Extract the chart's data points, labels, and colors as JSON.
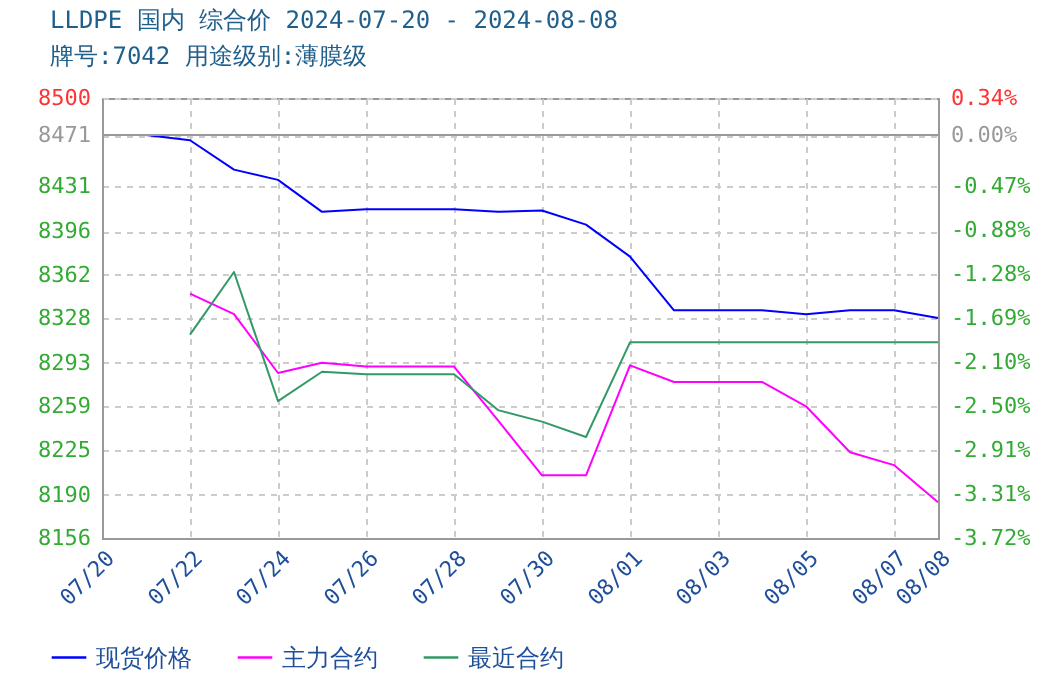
{
  "chart_data": {
    "type": "line",
    "title": "LLDPE 国内 综合价 2024-07-20 - 2024-08-08",
    "subtitle": "牌号:7042 用途级别:薄膜级",
    "x": [
      "2024-07-20",
      "2024-07-21",
      "2024-07-22",
      "2024-07-23",
      "2024-07-24",
      "2024-07-25",
      "2024-07-26",
      "2024-07-27",
      "2024-07-28",
      "2024-07-29",
      "2024-07-30",
      "2024-07-31",
      "2024-08-01",
      "2024-08-02",
      "2024-08-03",
      "2024-08-04",
      "2024-08-05",
      "2024-08-06",
      "2024-08-07",
      "2024-08-08"
    ],
    "series": [
      {
        "name": "现货价格",
        "color": "#0000ff",
        "values": [
          8471,
          8471,
          8467,
          8444,
          8436,
          8411,
          8413,
          8413,
          8413,
          8411,
          8412,
          8401,
          8376,
          8334,
          8334,
          8334,
          8331,
          8334,
          8334,
          8328
        ]
      },
      {
        "name": "主力合约",
        "color": "#ff00ff",
        "values": [
          null,
          null,
          8347,
          8331,
          8285,
          8293,
          8290,
          8290,
          8290,
          8248,
          8205,
          8205,
          8291,
          8278,
          8278,
          8278,
          8259,
          8223,
          8213,
          8184
        ]
      },
      {
        "name": "最近合约",
        "color": "#339966",
        "values": [
          null,
          null,
          8315,
          8364,
          8263,
          8286,
          8284,
          8284,
          8284,
          8256,
          8247,
          8235,
          8309,
          8309,
          8309,
          8309,
          8309,
          8309,
          8309,
          8309
        ]
      }
    ],
    "xlim": [
      "2024-07-20",
      "2024-08-08"
    ],
    "xticks": [
      {
        "value": "2024-07-20",
        "label": "07/20"
      },
      {
        "value": "2024-07-22",
        "label": "07/22"
      },
      {
        "value": "2024-07-24",
        "label": "07/24"
      },
      {
        "value": "2024-07-26",
        "label": "07/26"
      },
      {
        "value": "2024-07-28",
        "label": "07/28"
      },
      {
        "value": "2024-07-30",
        "label": "07/30"
      },
      {
        "value": "2024-08-01",
        "label": "08/01"
      },
      {
        "value": "2024-08-03",
        "label": "08/03"
      },
      {
        "value": "2024-08-05",
        "label": "08/05"
      },
      {
        "value": "2024-08-07",
        "label": "08/07"
      },
      {
        "value": "2024-08-08",
        "label": "08/08"
      }
    ],
    "ylim": [
      8156,
      8500
    ],
    "yticks": [
      8500,
      8471,
      8431,
      8396,
      8362,
      8328,
      8293,
      8259,
      8225,
      8190,
      8156
    ],
    "y2lim": [
      -3.72,
      0.34
    ],
    "y2ticks": [
      {
        "value": 0.34,
        "label": "0.34%"
      },
      {
        "value": 0,
        "label": "0.00%"
      },
      {
        "value": -0.47,
        "label": "-0.47%"
      },
      {
        "value": -0.88,
        "label": "-0.88%"
      },
      {
        "value": -1.28,
        "label": "-1.28%"
      },
      {
        "value": -1.69,
        "label": "-1.69%"
      },
      {
        "value": -2.1,
        "label": "-2.10%"
      },
      {
        "value": -2.5,
        "label": "-2.50%"
      },
      {
        "value": -2.91,
        "label": "-2.91%"
      },
      {
        "value": -3.31,
        "label": "-3.31%"
      },
      {
        "value": -3.72,
        "label": "-3.72%"
      }
    ],
    "ref_lines": [
      {
        "axis": "y",
        "value": 8471,
        "color": "#999999"
      }
    ],
    "grid": true,
    "legend": "bottom",
    "line_style": "solid",
    "marker": "none"
  }
}
